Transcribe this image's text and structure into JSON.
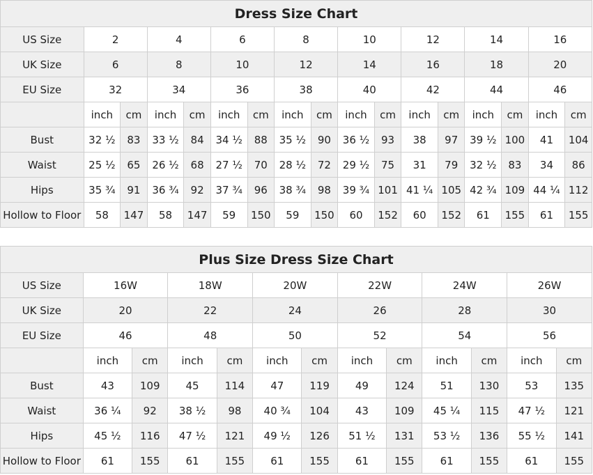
{
  "charts": [
    {
      "title": "Dress Size Chart",
      "us_label": "US Size",
      "uk_label": "UK Size",
      "eu_label": "EU Size",
      "us": [
        "2",
        "4",
        "6",
        "8",
        "10",
        "12",
        "14",
        "16"
      ],
      "uk": [
        "6",
        "8",
        "10",
        "12",
        "14",
        "16",
        "18",
        "20"
      ],
      "eu": [
        "32",
        "34",
        "36",
        "38",
        "40",
        "42",
        "44",
        "46"
      ],
      "unit_inch": "inch",
      "unit_cm": "cm",
      "measures": [
        {
          "label": "Bust",
          "inch": [
            "32 ½",
            "33 ½",
            "34 ½",
            "35 ½",
            "36 ½",
            "38",
            "39 ½",
            "41"
          ],
          "cm": [
            "83",
            "84",
            "88",
            "90",
            "93",
            "97",
            "100",
            "104"
          ]
        },
        {
          "label": "Waist",
          "inch": [
            "25 ½",
            "26 ½",
            "27 ½",
            "28 ½",
            "29 ½",
            "31",
            "32 ½",
            "34"
          ],
          "cm": [
            "65",
            "68",
            "70",
            "72",
            "75",
            "79",
            "83",
            "86"
          ]
        },
        {
          "label": "Hips",
          "inch": [
            "35 ¾",
            "36 ¾",
            "37 ¾",
            "38 ¾",
            "39 ¾",
            "41 ¼",
            "42 ¾",
            "44 ¼"
          ],
          "cm": [
            "91",
            "92",
            "96",
            "98",
            "101",
            "105",
            "109",
            "112"
          ]
        },
        {
          "label": "Hollow to Floor",
          "inch": [
            "58",
            "58",
            "59",
            "59",
            "60",
            "60",
            "61",
            "61"
          ],
          "cm": [
            "147",
            "147",
            "150",
            "150",
            "152",
            "152",
            "155",
            "155"
          ]
        }
      ]
    },
    {
      "title": "Plus Size Dress Size Chart",
      "us_label": "US Size",
      "uk_label": "UK Size",
      "eu_label": "EU Size",
      "us": [
        "16W",
        "18W",
        "20W",
        "22W",
        "24W",
        "26W"
      ],
      "uk": [
        "20",
        "22",
        "24",
        "26",
        "28",
        "30"
      ],
      "eu": [
        "46",
        "48",
        "50",
        "52",
        "54",
        "56"
      ],
      "unit_inch": "inch",
      "unit_cm": "cm",
      "measures": [
        {
          "label": "Bust",
          "inch": [
            "43",
            "45",
            "47",
            "49",
            "51",
            "53"
          ],
          "cm": [
            "109",
            "114",
            "119",
            "124",
            "130",
            "135"
          ]
        },
        {
          "label": "Waist",
          "inch": [
            "36 ¼",
            "38 ½",
            "40 ¾",
            "43",
            "45 ¼",
            "47 ½"
          ],
          "cm": [
            "92",
            "98",
            "104",
            "109",
            "115",
            "121"
          ]
        },
        {
          "label": "Hips",
          "inch": [
            "45 ½",
            "47 ½",
            "49 ½",
            "51 ½",
            "53 ½",
            "55 ½"
          ],
          "cm": [
            "116",
            "121",
            "126",
            "131",
            "136",
            "141"
          ]
        },
        {
          "label": "Hollow to Floor",
          "inch": [
            "61",
            "61",
            "61",
            "61",
            "61",
            "61"
          ],
          "cm": [
            "155",
            "155",
            "155",
            "155",
            "155",
            "155"
          ]
        }
      ]
    }
  ]
}
